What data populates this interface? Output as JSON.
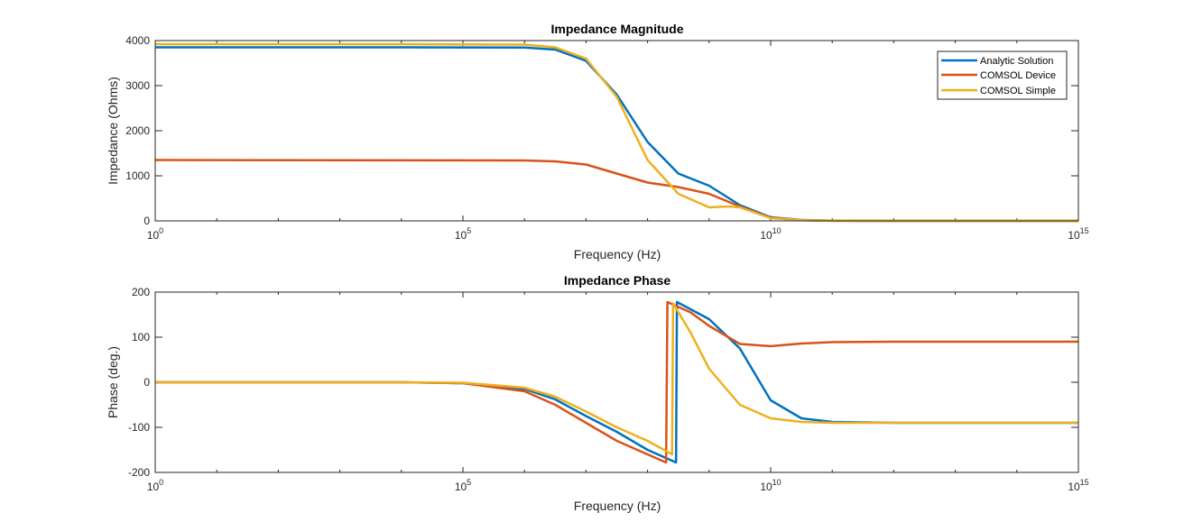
{
  "chart_data": [
    {
      "type": "line",
      "title": "Impedance Magnitude",
      "xlabel": "Frequency (Hz)",
      "ylabel": "Impedance (Ohms)",
      "xscale": "log",
      "xlim": [
        1,
        1000000000000000.0
      ],
      "ylim": [
        0,
        4000
      ],
      "xticks": [
        {
          "value": 1,
          "base": "10",
          "exp": "0"
        },
        {
          "value": 100000.0,
          "base": "10",
          "exp": "5"
        },
        {
          "value": 10000000000.0,
          "base": "10",
          "exp": "10"
        },
        {
          "value": 1000000000000000.0,
          "base": "10",
          "exp": "15"
        }
      ],
      "yticks": [
        {
          "value": 0,
          "label": "0"
        },
        {
          "value": 1000,
          "label": "1000"
        },
        {
          "value": 2000,
          "label": "2000"
        },
        {
          "value": 3000,
          "label": "3000"
        },
        {
          "value": 4000,
          "label": "4000"
        }
      ],
      "grid": false,
      "legend_position": "top-right",
      "series": [
        {
          "name": "Analytic Solution",
          "color": "#0072BD",
          "points": [
            [
              1,
              3850
            ],
            [
              10000.0,
              3850
            ],
            [
              1000000.0,
              3845
            ],
            [
              1000000.0,
              3845
            ],
            [
              3160000.0,
              3800
            ],
            [
              10000000.0,
              3550
            ],
            [
              31600000.0,
              2800
            ],
            [
              100000000.0,
              1750
            ],
            [
              316000000.0,
              1050
            ],
            [
              1000000000.0,
              780
            ],
            [
              3160000000.0,
              350
            ],
            [
              10000000000.0,
              80
            ],
            [
              31600000000.0,
              20
            ],
            [
              100000000000.0,
              5
            ],
            [
              1000000000000.0,
              0
            ],
            [
              1000000000000000.0,
              0
            ]
          ]
        },
        {
          "name": "COMSOL Device",
          "color": "#D95319",
          "points": [
            [
              1,
              1350
            ],
            [
              1000000.0,
              1340
            ],
            [
              3160000.0,
              1320
            ],
            [
              10000000.0,
              1250
            ],
            [
              31600000.0,
              1050
            ],
            [
              100000000.0,
              850
            ],
            [
              316000000.0,
              750
            ],
            [
              1000000000.0,
              600
            ],
            [
              3160000000.0,
              320
            ],
            [
              10000000000.0,
              70
            ],
            [
              31600000000.0,
              15
            ],
            [
              100000000000.0,
              3
            ],
            [
              1000000000000.0,
              0
            ],
            [
              1000000000000000.0,
              0
            ]
          ]
        },
        {
          "name": "COMSOL Simple",
          "color": "#EDB120",
          "points": [
            [
              1,
              3920
            ],
            [
              10000.0,
              3920
            ],
            [
              1000000.0,
              3910
            ],
            [
              3160000.0,
              3850
            ],
            [
              10000000.0,
              3600
            ],
            [
              31600000.0,
              2750
            ],
            [
              100000000.0,
              1350
            ],
            [
              316000000.0,
              600
            ],
            [
              1000000000.0,
              300
            ],
            [
              2000000000.0,
              320
            ],
            [
              3160000000.0,
              300
            ],
            [
              10000000000.0,
              60
            ],
            [
              31600000000.0,
              15
            ],
            [
              100000000000.0,
              3
            ],
            [
              1000000000000.0,
              0
            ],
            [
              1000000000000000.0,
              0
            ]
          ]
        }
      ]
    },
    {
      "type": "line",
      "title": "Impedance Phase",
      "xlabel": "Frequency (Hz)",
      "ylabel": "Phase (deg.)",
      "xscale": "log",
      "xlim": [
        1,
        1000000000000000.0
      ],
      "ylim": [
        -200,
        200
      ],
      "xticks": [
        {
          "value": 1,
          "base": "10",
          "exp": "0"
        },
        {
          "value": 100000.0,
          "base": "10",
          "exp": "5"
        },
        {
          "value": 10000000000.0,
          "base": "10",
          "exp": "10"
        },
        {
          "value": 1000000000000000.0,
          "base": "10",
          "exp": "15"
        }
      ],
      "yticks": [
        {
          "value": -200,
          "label": "-200"
        },
        {
          "value": -100,
          "label": "-100"
        },
        {
          "value": 0,
          "label": "0"
        },
        {
          "value": 100,
          "label": "100"
        },
        {
          "value": 200,
          "label": "200"
        }
      ],
      "grid": false,
      "legend_position": "none",
      "series": [
        {
          "name": "Analytic Solution",
          "color": "#0072BD",
          "points": [
            [
              1,
              0
            ],
            [
              10000.0,
              0
            ],
            [
              100000.0,
              -2
            ],
            [
              1000000.0,
              -15
            ],
            [
              3160000.0,
              -38
            ],
            [
              10000000.0,
              -75
            ],
            [
              31600000.0,
              -110
            ],
            [
              100000000.0,
              -150
            ],
            [
              290000000.0,
              -178
            ],
            [
              300000000.0,
              178
            ],
            [
              1000000000.0,
              140
            ],
            [
              3160000000.0,
              75
            ],
            [
              10000000000.0,
              -40
            ],
            [
              31600000000.0,
              -80
            ],
            [
              100000000000.0,
              -88
            ],
            [
              1000000000000.0,
              -90
            ],
            [
              1000000000000000.0,
              -90
            ]
          ]
        },
        {
          "name": "COMSOL Device",
          "color": "#D95319",
          "points": [
            [
              1,
              0
            ],
            [
              10000.0,
              0
            ],
            [
              100000.0,
              -2
            ],
            [
              1000000.0,
              -20
            ],
            [
              3160000.0,
              -50
            ],
            [
              10000000.0,
              -90
            ],
            [
              31600000.0,
              -130
            ],
            [
              100000000.0,
              -160
            ],
            [
              200000000.0,
              -178
            ],
            [
              210000000.0,
              178
            ],
            [
              500000000.0,
              155
            ],
            [
              1000000000.0,
              125
            ],
            [
              3160000000.0,
              85
            ],
            [
              10000000000.0,
              80
            ],
            [
              31600000000.0,
              86
            ],
            [
              100000000000.0,
              89
            ],
            [
              1000000000000.0,
              90
            ],
            [
              1000000000000000.0,
              90
            ]
          ]
        },
        {
          "name": "COMSOL Simple",
          "color": "#EDB120",
          "points": [
            [
              1,
              0
            ],
            [
              10000.0,
              0
            ],
            [
              100000.0,
              -1
            ],
            [
              1000000.0,
              -12
            ],
            [
              3160000.0,
              -32
            ],
            [
              10000000.0,
              -65
            ],
            [
              31600000.0,
              -100
            ],
            [
              100000000.0,
              -130
            ],
            [
              250000000.0,
              -160
            ],
            [
              260000000.0,
              175
            ],
            [
              500000000.0,
              110
            ],
            [
              1000000000.0,
              30
            ],
            [
              3160000000.0,
              -50
            ],
            [
              10000000000.0,
              -80
            ],
            [
              31600000000.0,
              -88
            ],
            [
              100000000000.0,
              -90
            ],
            [
              1000000000000000.0,
              -90
            ]
          ]
        }
      ]
    }
  ]
}
